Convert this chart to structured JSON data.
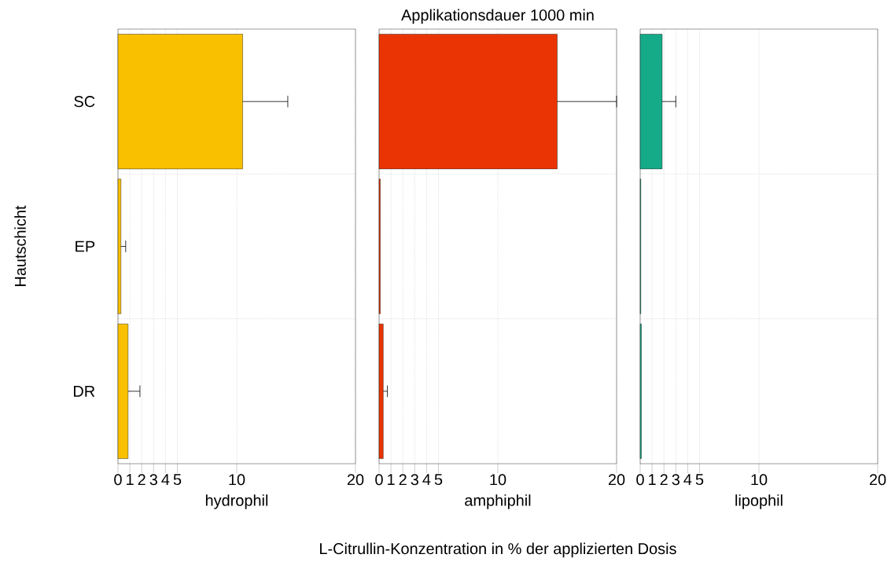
{
  "chart_data": [
    {
      "type": "bar",
      "orientation": "horizontal",
      "categories": [
        "SC",
        "EP",
        "DR"
      ],
      "values": [
        10.5,
        0.25,
        0.85
      ],
      "errors": [
        [
          10.5,
          14.3
        ],
        [
          0.25,
          0.65
        ],
        [
          0.85,
          1.85
        ]
      ],
      "color": "#f9c000",
      "xlim": [
        0,
        20
      ],
      "xticks": [
        0,
        1,
        2,
        3,
        4,
        5,
        10,
        20
      ],
      "grid": true,
      "xlabel": "hydrophil",
      "ylabel": "Hautschicht"
    },
    {
      "type": "bar",
      "orientation": "horizontal",
      "categories": [
        null,
        null,
        null
      ],
      "values": [
        15.0,
        0.1,
        0.35
      ],
      "errors": [
        [
          15.0,
          20.0
        ],
        null,
        [
          0.35,
          0.7
        ]
      ],
      "color": "#ea3403",
      "xlim": [
        0,
        20
      ],
      "xticks": [
        0,
        1,
        2,
        3,
        4,
        5,
        10,
        20
      ],
      "grid": true,
      "xlabel": "amphiphil",
      "tick_labels": "x",
      "title": "Applikationsdauer 1000 min",
      "annotations": [
        "L-Citrullin-Konzentration in % der applizierten Dosis"
      ]
    },
    {
      "type": "bar",
      "orientation": "horizontal",
      "categories": [
        null,
        null,
        null
      ],
      "values": [
        1.85,
        0.05,
        0.1
      ],
      "errors": [
        [
          1.85,
          3.0
        ],
        null,
        null
      ],
      "color": "#15aa88",
      "xlim": [
        0,
        20
      ],
      "xticks": [
        0,
        1,
        2,
        3,
        4,
        5,
        10,
        20
      ],
      "grid": true,
      "xlabel": "lipophil",
      "tick_labels": "x"
    }
  ]
}
